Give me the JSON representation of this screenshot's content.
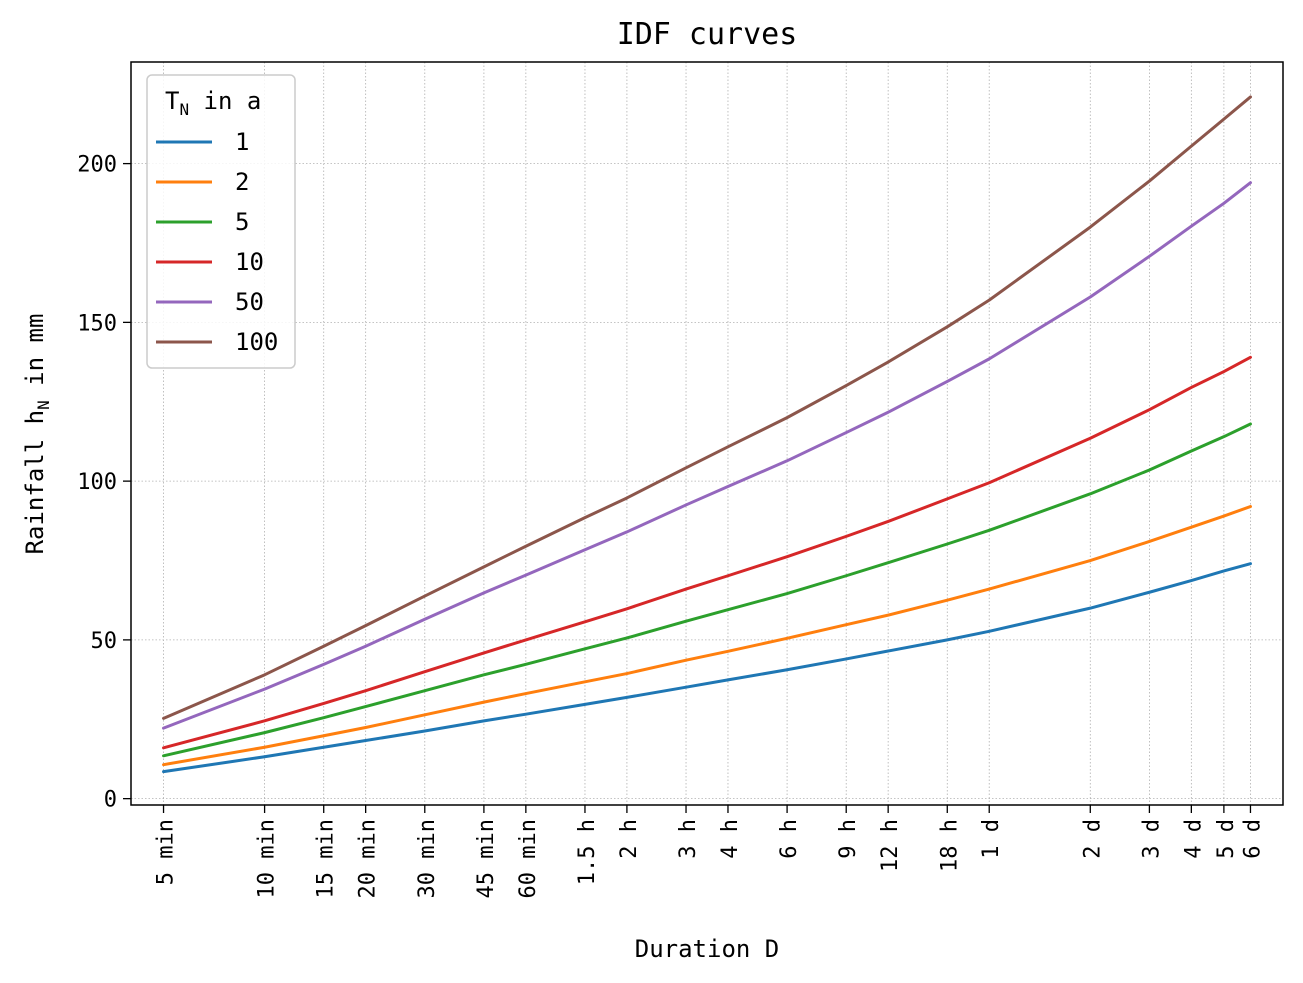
{
  "chart_data": {
    "type": "line",
    "title": "IDF curves",
    "xlabel": "Duration D",
    "ylabel_main": "Rainfall h",
    "ylabel_sub": "N",
    "ylabel_tail": " in mm",
    "x_scale": "log",
    "x_unit": "minutes",
    "xlim": [
      4.0,
      10800
    ],
    "ylim": [
      -2,
      232
    ],
    "grid": true,
    "legend_position": "top-left",
    "legend_title_main": "T",
    "legend_title_sub": "N",
    "legend_title_tail": " in a",
    "x_ticks": [
      {
        "minutes": 5,
        "label": "5 min"
      },
      {
        "minutes": 10,
        "label": "10 min"
      },
      {
        "minutes": 15,
        "label": "15 min"
      },
      {
        "minutes": 20,
        "label": "20 min"
      },
      {
        "minutes": 30,
        "label": "30 min"
      },
      {
        "minutes": 45,
        "label": "45 min"
      },
      {
        "minutes": 60,
        "label": "60 min"
      },
      {
        "minutes": 90,
        "label": "1.5 h"
      },
      {
        "minutes": 120,
        "label": "2 h"
      },
      {
        "minutes": 180,
        "label": "3 h"
      },
      {
        "minutes": 240,
        "label": "4 h"
      },
      {
        "minutes": 360,
        "label": "6 h"
      },
      {
        "minutes": 540,
        "label": "9 h"
      },
      {
        "minutes": 720,
        "label": "12 h"
      },
      {
        "minutes": 1080,
        "label": "18 h"
      },
      {
        "minutes": 1440,
        "label": "1 d"
      },
      {
        "minutes": 2880,
        "label": "2 d"
      },
      {
        "minutes": 4320,
        "label": "3 d"
      },
      {
        "minutes": 5760,
        "label": "4 d"
      },
      {
        "minutes": 7200,
        "label": "5 d"
      },
      {
        "minutes": 8640,
        "label": "6 d"
      }
    ],
    "y_ticks": [
      0,
      50,
      100,
      150,
      200
    ],
    "x": [
      5,
      10,
      15,
      20,
      30,
      45,
      60,
      90,
      120,
      180,
      240,
      360,
      540,
      720,
      1080,
      1440,
      2880,
      4320,
      5760,
      7200,
      8640
    ],
    "series": [
      {
        "name": "1",
        "color": "#1f77b4",
        "values": [
          8.5,
          13.2,
          16.2,
          18.3,
          21.3,
          24.5,
          26.6,
          29.7,
          31.9,
          35.1,
          37.4,
          40.6,
          44.0,
          46.5,
          50.0,
          52.7,
          60.0,
          65.0,
          68.7,
          71.7,
          74.0
        ]
      },
      {
        "name": "2",
        "color": "#ff7f0e",
        "values": [
          10.7,
          16.2,
          19.8,
          22.4,
          26.4,
          30.4,
          33.1,
          36.8,
          39.4,
          43.6,
          46.4,
          50.5,
          54.8,
          57.8,
          62.5,
          66.0,
          75.0,
          81.0,
          85.5,
          89.0,
          92.0
        ]
      },
      {
        "name": "5",
        "color": "#2ca02c",
        "values": [
          13.5,
          20.8,
          25.5,
          29.0,
          34.0,
          39.0,
          42.3,
          47.2,
          50.6,
          55.9,
          59.5,
          64.6,
          70.2,
          74.3,
          80.2,
          84.5,
          96.0,
          103.5,
          109.5,
          114.0,
          118.0
        ]
      },
      {
        "name": "10",
        "color": "#d62728",
        "values": [
          16.0,
          24.5,
          30.0,
          34.0,
          40.0,
          45.9,
          50.0,
          55.7,
          59.8,
          66.0,
          70.2,
          76.2,
          82.6,
          87.3,
          94.4,
          99.5,
          113.5,
          122.5,
          129.5,
          134.5,
          139.0
        ]
      },
      {
        "name": "50",
        "color": "#9467bd",
        "values": [
          22.2,
          34.5,
          42.3,
          48.0,
          56.5,
          64.8,
          70.4,
          78.4,
          84.0,
          92.5,
          98.3,
          106.4,
          115.3,
          121.7,
          131.4,
          138.5,
          158.0,
          170.8,
          180.3,
          187.5,
          194.0
        ]
      },
      {
        "name": "100",
        "color": "#8c564b",
        "values": [
          25.3,
          39.0,
          48.0,
          54.5,
          63.8,
          73.0,
          79.5,
          88.5,
          94.7,
          104.2,
          110.8,
          120.0,
          130.1,
          137.5,
          148.6,
          157.0,
          180.0,
          194.5,
          205.5,
          214.0,
          221.0
        ]
      }
    ]
  }
}
